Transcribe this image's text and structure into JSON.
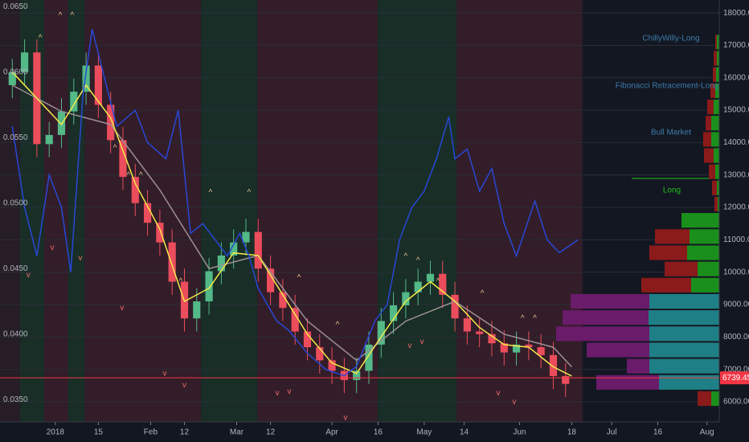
{
  "chart_data": {
    "type": "candlestick",
    "xlim": [
      -18,
      216
    ],
    "ylim": [
      0.0333,
      0.0655
    ],
    "y2lim": [
      5380,
      18400
    ],
    "grid": true,
    "xticks": [
      {
        "value": 0,
        "label": "2018"
      },
      {
        "value": 14,
        "label": "15"
      },
      {
        "value": 31,
        "label": "Feb"
      },
      {
        "value": 42,
        "label": "12"
      },
      {
        "value": 59,
        "label": "Mar"
      },
      {
        "value": 70,
        "label": "12"
      },
      {
        "value": 90,
        "label": "Apr"
      },
      {
        "value": 105,
        "label": "16"
      },
      {
        "value": 120,
        "label": "May"
      },
      {
        "value": 133,
        "label": "14"
      },
      {
        "value": 151,
        "label": "Jun"
      },
      {
        "value": 168,
        "label": "18"
      },
      {
        "value": 181,
        "label": "Jul"
      },
      {
        "value": 196,
        "label": "16"
      },
      {
        "value": 212,
        "label": "Aug"
      }
    ],
    "yticks": [
      {
        "value": 0.035,
        "label": "0.0350"
      },
      {
        "value": 0.04,
        "label": "0.0400"
      },
      {
        "value": 0.045,
        "label": "0.0450"
      },
      {
        "value": 0.05,
        "label": "0.0500"
      },
      {
        "value": 0.055,
        "label": "0.0550"
      },
      {
        "value": 0.06,
        "label": "0.0600"
      },
      {
        "value": 0.065,
        "label": "0.0650"
      }
    ],
    "y2ticks": [
      {
        "value": 6000,
        "label": "6000.00"
      },
      {
        "value": 7000,
        "label": "7000.00"
      },
      {
        "value": 8000,
        "label": "8000.00"
      },
      {
        "value": 9000,
        "label": "9000.00"
      },
      {
        "value": 10000,
        "label": "10000.00"
      },
      {
        "value": 11000,
        "label": "11000.00"
      },
      {
        "value": 12000,
        "label": "12000.00"
      },
      {
        "value": 13000,
        "label": "13000.00"
      },
      {
        "value": 14000,
        "label": "14000.00"
      },
      {
        "value": 15000,
        "label": "15000.00"
      },
      {
        "value": 16000,
        "label": "16000.00"
      },
      {
        "value": 17000,
        "label": "17000.00"
      },
      {
        "value": 18000,
        "label": "18000.00"
      }
    ],
    "bands": [
      {
        "from": -18,
        "to": -11.5,
        "color": "#2a1f27"
      },
      {
        "from": -11.5,
        "to": -3.6,
        "color": "#1a3328"
      },
      {
        "from": -3.6,
        "to": 4.2,
        "color": "#3a1f2a"
      },
      {
        "from": 4.2,
        "to": 9.5,
        "color": "#1a3328"
      },
      {
        "from": 9.5,
        "to": 47.4,
        "color": "#3a1f2a"
      },
      {
        "from": 47.4,
        "to": 65.7,
        "color": "#1a3328"
      },
      {
        "from": 65.7,
        "to": 104.9,
        "color": "#3a1f2a"
      },
      {
        "from": 104.9,
        "to": 130.5,
        "color": "#1a3328"
      },
      {
        "from": 130.5,
        "to": 171.5,
        "color": "#3a1f2a"
      }
    ],
    "candles": {
      "up_color": "#53b987",
      "down_color": "#eb4d5c",
      "x": [
        -14,
        -10,
        -6,
        -2,
        2,
        6,
        10,
        14,
        18,
        22,
        26,
        30,
        34,
        38,
        42,
        46,
        50,
        54,
        58,
        62,
        66,
        70,
        74,
        78,
        82,
        86,
        90,
        94,
        98,
        102,
        106,
        110,
        114,
        118,
        122,
        126,
        130,
        134,
        138,
        142,
        146,
        150,
        154,
        158,
        162,
        166
      ],
      "open": [
        0.059,
        0.06,
        0.0615,
        0.0545,
        0.0552,
        0.057,
        0.0585,
        0.0605,
        0.0575,
        0.0548,
        0.052,
        0.05,
        0.0485,
        0.047,
        0.044,
        0.0412,
        0.0425,
        0.0448,
        0.046,
        0.047,
        0.0478,
        0.045,
        0.0432,
        0.042,
        0.0402,
        0.039,
        0.038,
        0.0372,
        0.0365,
        0.0372,
        0.0392,
        0.041,
        0.0422,
        0.0432,
        0.044,
        0.0446,
        0.043,
        0.0412,
        0.0402,
        0.04,
        0.0393,
        0.0386,
        0.0392,
        0.039,
        0.0384,
        0.0368
      ],
      "high": [
        0.061,
        0.0625,
        0.0625,
        0.0562,
        0.058,
        0.0595,
        0.0615,
        0.0615,
        0.0585,
        0.0558,
        0.053,
        0.051,
        0.0495,
        0.048,
        0.045,
        0.0435,
        0.0458,
        0.047,
        0.048,
        0.0488,
        0.0488,
        0.046,
        0.0442,
        0.043,
        0.0412,
        0.04,
        0.039,
        0.0382,
        0.0382,
        0.0402,
        0.042,
        0.0432,
        0.0442,
        0.045,
        0.0456,
        0.0456,
        0.044,
        0.0422,
        0.0412,
        0.041,
        0.0403,
        0.0402,
        0.0402,
        0.04,
        0.0394,
        0.0378
      ],
      "low": [
        0.058,
        0.059,
        0.0535,
        0.0535,
        0.0542,
        0.056,
        0.0575,
        0.0565,
        0.0538,
        0.051,
        0.049,
        0.0475,
        0.046,
        0.043,
        0.0402,
        0.0402,
        0.0415,
        0.0438,
        0.045,
        0.046,
        0.044,
        0.0422,
        0.041,
        0.0392,
        0.038,
        0.037,
        0.0362,
        0.0355,
        0.0355,
        0.0362,
        0.0382,
        0.04,
        0.0412,
        0.0422,
        0.043,
        0.042,
        0.0402,
        0.0392,
        0.039,
        0.0383,
        0.0376,
        0.0376,
        0.038,
        0.0374,
        0.0358,
        0.0352
      ],
      "close": [
        0.06,
        0.0615,
        0.0545,
        0.0552,
        0.057,
        0.0585,
        0.0605,
        0.0575,
        0.0548,
        0.052,
        0.05,
        0.0485,
        0.047,
        0.044,
        0.0412,
        0.0425,
        0.0448,
        0.046,
        0.047,
        0.0478,
        0.045,
        0.0432,
        0.042,
        0.0402,
        0.039,
        0.038,
        0.0372,
        0.0365,
        0.0372,
        0.0392,
        0.041,
        0.0422,
        0.0432,
        0.044,
        0.0446,
        0.043,
        0.0412,
        0.0402,
        0.04,
        0.0393,
        0.0386,
        0.0392,
        0.039,
        0.0384,
        0.0368,
        0.0362
      ]
    },
    "lines": [
      {
        "color": "#9c8f94",
        "axis": "y",
        "x": [
          -14,
          2,
          18,
          34,
          50,
          66,
          82,
          98,
          114,
          130,
          146,
          162,
          168
        ],
        "values": [
          0.059,
          0.057,
          0.056,
          0.051,
          0.045,
          0.046,
          0.041,
          0.038,
          0.041,
          0.0425,
          0.04,
          0.039,
          0.0375
        ]
      },
      {
        "color": "#f5e94a",
        "axis": "y",
        "x": [
          -14,
          -6,
          2,
          10,
          18,
          26,
          34,
          42,
          50,
          58,
          66,
          74,
          82,
          90,
          98,
          106,
          114,
          122,
          130,
          138,
          146,
          154,
          162,
          168
        ],
        "values": [
          0.06,
          0.058,
          0.056,
          0.059,
          0.0565,
          0.0515,
          0.048,
          0.0425,
          0.0435,
          0.0462,
          0.046,
          0.043,
          0.04,
          0.0378,
          0.037,
          0.0398,
          0.0425,
          0.044,
          0.0425,
          0.0405,
          0.0392,
          0.039,
          0.0375,
          0.0368
        ]
      },
      {
        "color": "#2947d6",
        "axis": "y2",
        "x": [
          -14,
          -10,
          -6,
          -2,
          2,
          5,
          9,
          12,
          16,
          20,
          26,
          30,
          36,
          40,
          44,
          48,
          52,
          56,
          60,
          63,
          66,
          72,
          76,
          82,
          88,
          94,
          98,
          104,
          108,
          112,
          116,
          120,
          124,
          128,
          130,
          134,
          138,
          142,
          146,
          150,
          156,
          160,
          164,
          170
        ],
        "values": [
          14500,
          12000,
          10500,
          13000,
          12000,
          10000,
          15500,
          17500,
          16000,
          14500,
          15000,
          14000,
          13500,
          15000,
          11200,
          11500,
          11000,
          10500,
          11200,
          10500,
          9500,
          8500,
          8200,
          7500,
          7000,
          6800,
          7100,
          8500,
          9000,
          11000,
          12000,
          12500,
          13500,
          14800,
          13500,
          13800,
          12500,
          13200,
          11500,
          10500,
          12200,
          11000,
          10600,
          11000
        ]
      }
    ],
    "markers": [
      {
        "text": "^",
        "color": "#f2c48d",
        "points": [
          {
            "x": 1.6,
            "y": 0.0643
          },
          {
            "x": 5.5,
            "y": 0.0643
          },
          {
            "x": -4.9,
            "y": 0.0626
          },
          {
            "x": 19.4,
            "y": 0.0542
          },
          {
            "x": 23.8,
            "y": 0.0521
          },
          {
            "x": 27.8,
            "y": 0.0521
          },
          {
            "x": 50.5,
            "y": 0.0508
          },
          {
            "x": 63,
            "y": 0.0508
          },
          {
            "x": 40.8,
            "y": 0.044
          },
          {
            "x": 79.3,
            "y": 0.0443
          },
          {
            "x": 91.8,
            "y": 0.0407
          },
          {
            "x": 114,
            "y": 0.0459
          },
          {
            "x": 118,
            "y": 0.0456
          },
          {
            "x": 124.5,
            "y": 0.044
          },
          {
            "x": 138.9,
            "y": 0.0431
          },
          {
            "x": 152,
            "y": 0.0412
          },
          {
            "x": 156,
            "y": 0.0412
          }
        ]
      },
      {
        "text": "v",
        "color": "#f06a6a",
        "points": [
          {
            "x": -8.8,
            "y": 0.0445
          },
          {
            "x": -1,
            "y": 0.0466
          },
          {
            "x": 8.1,
            "y": 0.0458
          },
          {
            "x": 21.7,
            "y": 0.042
          },
          {
            "x": 35.6,
            "y": 0.037
          },
          {
            "x": 42,
            "y": 0.0361
          },
          {
            "x": 72.2,
            "y": 0.0355
          },
          {
            "x": 76.1,
            "y": 0.0356
          },
          {
            "x": 94.4,
            "y": 0.0336
          },
          {
            "x": 115.3,
            "y": 0.0391
          },
          {
            "x": 119.3,
            "y": 0.0394
          },
          {
            "x": 144.1,
            "y": 0.0355
          },
          {
            "x": 149.3,
            "y": 0.0348
          }
        ]
      }
    ],
    "profile": [
      {
        "price": 17100,
        "down": 2,
        "up": 3,
        "colors": [
          "#8b1a1a",
          "#1b8f1b"
        ]
      },
      {
        "price": 16600,
        "down": 4,
        "up": 3,
        "colors": [
          "#8b1a1a",
          "#1b8f1b"
        ]
      },
      {
        "price": 16100,
        "down": 4,
        "up": 4,
        "colors": [
          "#8b1a1a",
          "#1b8f1b"
        ]
      },
      {
        "price": 15600,
        "down": 6,
        "up": 5,
        "colors": [
          "#8b1a1a",
          "#1b8f1b"
        ]
      },
      {
        "price": 15100,
        "down": 8,
        "up": 7,
        "colors": [
          "#8b1a1a",
          "#1b8f1b"
        ]
      },
      {
        "price": 14600,
        "down": 7,
        "up": 10,
        "colors": [
          "#8b1a1a",
          "#1b8f1b"
        ]
      },
      {
        "price": 14100,
        "down": 10,
        "up": 10,
        "colors": [
          "#8b1a1a",
          "#1b8f1b"
        ]
      },
      {
        "price": 13600,
        "down": 12,
        "up": 7,
        "colors": [
          "#8b1a1a",
          "#1b8f1b"
        ]
      },
      {
        "price": 13100,
        "down": 8,
        "up": 5,
        "colors": [
          "#8b1a1a",
          "#1b8f1b"
        ]
      },
      {
        "price": 12600,
        "down": 6,
        "up": 3,
        "colors": [
          "#8b1a1a",
          "#1b8f1b"
        ]
      },
      {
        "price": 12100,
        "down": 4,
        "up": 2,
        "colors": [
          "#8b1a1a",
          "#1b8f1b"
        ]
      },
      {
        "price": 11600,
        "down": 0,
        "up": 47,
        "colors": [
          "#8b1a1a",
          "#1b8f1b"
        ]
      },
      {
        "price": 11100,
        "down": 43,
        "up": 37,
        "colors": [
          "#8b1a1a",
          "#1b8f1b"
        ]
      },
      {
        "price": 10600,
        "down": 47,
        "up": 40,
        "colors": [
          "#8b1a1a",
          "#1b8f1b"
        ]
      },
      {
        "price": 10100,
        "down": 41,
        "up": 27,
        "colors": [
          "#8b1a1a",
          "#1b8f1b"
        ]
      },
      {
        "price": 9600,
        "down": 62,
        "up": 35,
        "colors": [
          "#8b1a1a",
          "#1b8f1b"
        ]
      },
      {
        "price": 9100,
        "down": 98,
        "up": 87,
        "colors": [
          "#6a1b6a",
          "#1f7f86"
        ]
      },
      {
        "price": 8600,
        "down": 107,
        "up": 88,
        "colors": [
          "#6a1b6a",
          "#1f7f86"
        ]
      },
      {
        "price": 8100,
        "down": 116,
        "up": 87,
        "colors": [
          "#6a1b6a",
          "#1f7f86"
        ]
      },
      {
        "price": 7600,
        "down": 78,
        "up": 87,
        "colors": [
          "#6a1b6a",
          "#1f7f86"
        ]
      },
      {
        "price": 7100,
        "down": 28,
        "up": 87,
        "colors": [
          "#6a1b6a",
          "#1f7f86"
        ]
      },
      {
        "price": 6600,
        "down": 78,
        "up": 75,
        "colors": [
          "#6a1b6a",
          "#1f7f86"
        ]
      },
      {
        "price": 6100,
        "down": 17,
        "up": 10,
        "colors": [
          "#8b1a1a",
          "#1b8f1b"
        ]
      }
    ],
    "last_price": 6739.45,
    "last_price_color": "#f23645",
    "annotations": [
      {
        "text": "ChillyWilly-Long",
        "color": "#3d7ba8"
      },
      {
        "text": "Fibonacci Retracement-Long",
        "color": "#3d7ba8"
      },
      {
        "text": "Bull Market",
        "color": "#3d7ba8"
      },
      {
        "text": "Long",
        "color": "#21c021"
      }
    ]
  }
}
